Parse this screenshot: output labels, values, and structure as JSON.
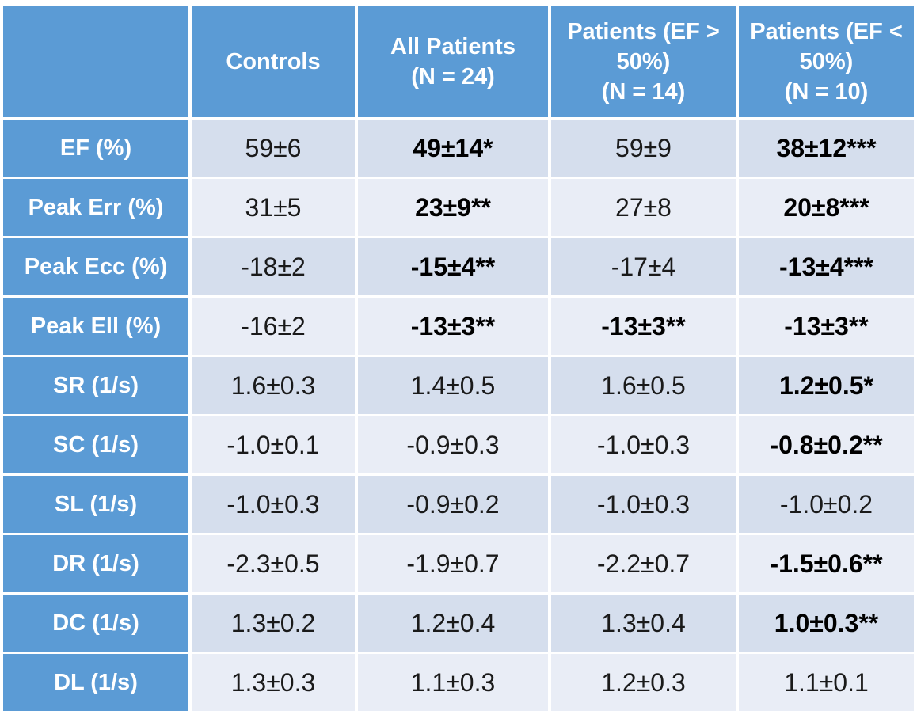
{
  "colors": {
    "header_bg": "#5B9BD5",
    "header_text": "#FFFFFF",
    "band_dark": "#D5DEED",
    "band_light": "#E9EDF6",
    "grid": "#FFFFFF",
    "value_text": "#1A1A1A"
  },
  "chart_data": {
    "type": "table",
    "columns": [
      "",
      "Controls",
      "All Patients\n(N = 24)",
      "Patients (EF > 50%)\n(N = 14)",
      "Patients (EF < 50%)\n(N = 10)"
    ],
    "rows": [
      {
        "label": "EF (%)",
        "cells": [
          {
            "v": "59±6",
            "b": false
          },
          {
            "v": "49±14*",
            "b": true
          },
          {
            "v": "59±9",
            "b": false
          },
          {
            "v": "38±12***",
            "b": true
          }
        ]
      },
      {
        "label": "Peak Err (%)",
        "cells": [
          {
            "v": "31±5",
            "b": false
          },
          {
            "v": "23±9**",
            "b": true
          },
          {
            "v": "27±8",
            "b": false
          },
          {
            "v": "20±8***",
            "b": true
          }
        ]
      },
      {
        "label": "Peak Ecc (%)",
        "cells": [
          {
            "v": "-18±2",
            "b": false
          },
          {
            "v": "-15±4**",
            "b": true
          },
          {
            "v": "-17±4",
            "b": false
          },
          {
            "v": "-13±4***",
            "b": true
          }
        ]
      },
      {
        "label": "Peak Ell (%)",
        "cells": [
          {
            "v": "-16±2",
            "b": false
          },
          {
            "v": "-13±3**",
            "b": true
          },
          {
            "v": "-13±3**",
            "b": true
          },
          {
            "v": "-13±3**",
            "b": true
          }
        ]
      },
      {
        "label": "SR (1/s)",
        "cells": [
          {
            "v": "1.6±0.3",
            "b": false
          },
          {
            "v": "1.4±0.5",
            "b": false
          },
          {
            "v": "1.6±0.5",
            "b": false
          },
          {
            "v": "1.2±0.5*",
            "b": true
          }
        ]
      },
      {
        "label": "SC (1/s)",
        "cells": [
          {
            "v": "-1.0±0.1",
            "b": false
          },
          {
            "v": "-0.9±0.3",
            "b": false
          },
          {
            "v": "-1.0±0.3",
            "b": false
          },
          {
            "v": "-0.8±0.2**",
            "b": true
          }
        ]
      },
      {
        "label": "SL (1/s)",
        "cells": [
          {
            "v": "-1.0±0.3",
            "b": false
          },
          {
            "v": "-0.9±0.2",
            "b": false
          },
          {
            "v": "-1.0±0.3",
            "b": false
          },
          {
            "v": "-1.0±0.2",
            "b": false
          }
        ]
      },
      {
        "label": "DR (1/s)",
        "cells": [
          {
            "v": "-2.3±0.5",
            "b": false
          },
          {
            "v": "-1.9±0.7",
            "b": false
          },
          {
            "v": "-2.2±0.7",
            "b": false
          },
          {
            "v": "-1.5±0.6**",
            "b": true
          }
        ]
      },
      {
        "label": "DC (1/s)",
        "cells": [
          {
            "v": "1.3±0.2",
            "b": false
          },
          {
            "v": "1.2±0.4",
            "b": false
          },
          {
            "v": "1.3±0.4",
            "b": false
          },
          {
            "v": "1.0±0.3**",
            "b": true
          }
        ]
      },
      {
        "label": "DL (1/s)",
        "cells": [
          {
            "v": "1.3±0.3",
            "b": false
          },
          {
            "v": "1.1±0.3",
            "b": false
          },
          {
            "v": "1.2±0.3",
            "b": false
          },
          {
            "v": "1.1±0.1",
            "b": false
          }
        ]
      }
    ]
  }
}
